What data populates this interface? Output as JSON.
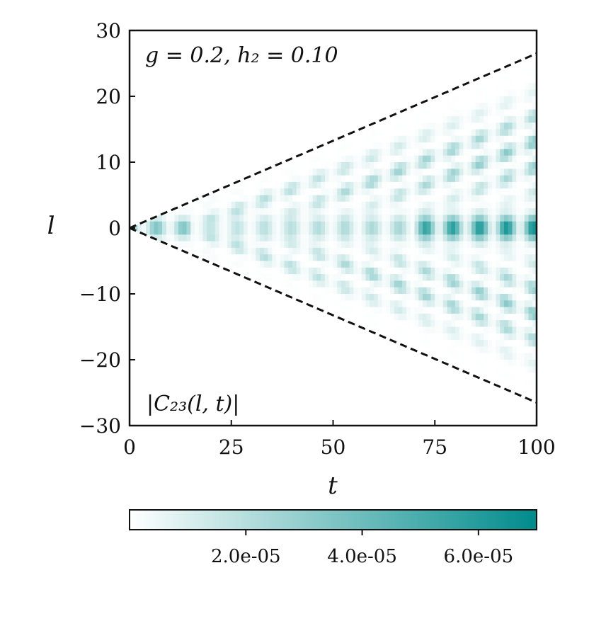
{
  "chart_data": {
    "type": "heatmap",
    "xlabel": "t",
    "ylabel": "l",
    "xlim": [
      0,
      100
    ],
    "ylim": [
      -30,
      30
    ],
    "xticks": [
      0,
      25,
      50,
      75,
      100
    ],
    "xtick_labels": [
      "0",
      "25",
      "50",
      "75",
      "100"
    ],
    "yticks": [
      -30,
      -20,
      -10,
      0,
      10,
      20,
      30
    ],
    "ytick_labels": [
      "−30",
      "−20",
      "−10",
      "0",
      "10",
      "20",
      "30"
    ],
    "annotation_top": "g = 0.2, h₂ = 0.10",
    "annotation_bottom": "|C₂₃(l, t)|",
    "light_cone_lines": [
      {
        "start": [
          0,
          0
        ],
        "end": [
          100,
          26.5
        ]
      },
      {
        "start": [
          0,
          0
        ],
        "end": [
          100,
          -26.5
        ]
      }
    ],
    "colorbar": {
      "min": 0,
      "max": 7e-05,
      "cmap": [
        "#ffffff",
        "#008b8b"
      ],
      "ticks": [
        2e-05,
        4e-05,
        6e-05
      ],
      "tick_labels": [
        "2.0e-05",
        "4.0e-05",
        "6.0e-05"
      ]
    },
    "grid": false
  }
}
